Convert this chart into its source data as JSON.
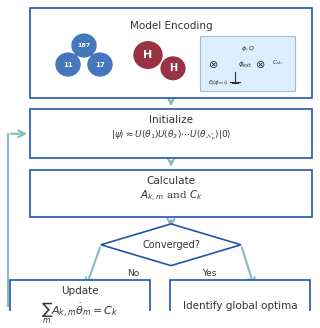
{
  "bg_color": "#ffffff",
  "box_edge_color": "#2255aa",
  "box_face_color": "#ffffff",
  "arrow_color": "#88bbbb",
  "diamond_edge_color": "#2255aa",
  "diamond_face_color": "#ffffff",
  "text_color": "#333333",
  "title": "Model Encoding",
  "box1_text1": "Initialize",
  "box1_text2": "$|\\psi\\rangle \\approx U(\\theta_1)U(\\theta_2)\\cdots U(\\theta_{\\mathcal{N}_p})|0\\rangle$",
  "box2_text1": "Calculate",
  "box2_text2": "$A_{k,m}$ and $C_k$",
  "diamond_text": "Converged?",
  "no_label": "No",
  "yes_label": "Yes",
  "box3_text1": "Update",
  "box3_text2": "$\\sum_{m} A_{k,m}\\dot{\\theta}_m = C_k$",
  "box4_text": "Identify global optima",
  "atom_blue_color": "#4477bb",
  "atom_red_color": "#993344"
}
